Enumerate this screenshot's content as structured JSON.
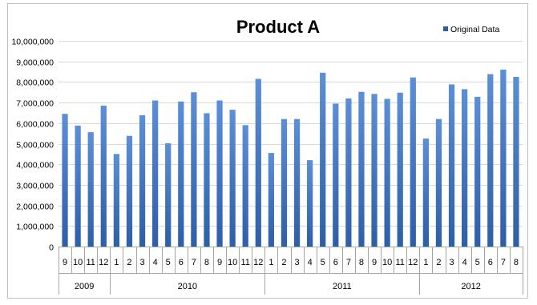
{
  "chart_data": {
    "type": "bar",
    "title": "Product A",
    "legend": {
      "position": "top-right",
      "series_name": "Original Data"
    },
    "colors": {
      "bar_top": "#5b8fd8",
      "bar_bottom": "#2d5ea8",
      "grid": "#d9d9d9",
      "axis": "#a6a6a6"
    },
    "grid": true,
    "ylim": [
      0,
      10000000
    ],
    "yticks": [
      0,
      1000000,
      2000000,
      3000000,
      4000000,
      5000000,
      6000000,
      7000000,
      8000000,
      9000000,
      10000000
    ],
    "ytick_labels": [
      "0",
      "1,000,000",
      "2,000,000",
      "3,000,000",
      "4,000,000",
      "5,000,000",
      "6,000,000",
      "7,000,000",
      "8,000,000",
      "9,000,000",
      "10,000,000"
    ],
    "categories": [
      "9",
      "10",
      "11",
      "12",
      "1",
      "2",
      "3",
      "4",
      "5",
      "6",
      "7",
      "8",
      "9",
      "10",
      "11",
      "12",
      "1",
      "2",
      "3",
      "4",
      "5",
      "6",
      "7",
      "8",
      "9",
      "10",
      "11",
      "12",
      "1",
      "2",
      "3",
      "4",
      "5",
      "6",
      "7",
      "8"
    ],
    "years": [
      {
        "label": "2009",
        "count": 4
      },
      {
        "label": "2010",
        "count": 12
      },
      {
        "label": "2011",
        "count": 12
      },
      {
        "label": "2012",
        "count": 8
      }
    ],
    "series": [
      {
        "name": "Original Data",
        "values": [
          6450000,
          5880000,
          5560000,
          6850000,
          4500000,
          5380000,
          6380000,
          7100000,
          5020000,
          7050000,
          7500000,
          6480000,
          7100000,
          6650000,
          5900000,
          8150000,
          4550000,
          6200000,
          6200000,
          4200000,
          8450000,
          6950000,
          7200000,
          7520000,
          7420000,
          7180000,
          7480000,
          8220000,
          5250000,
          6200000,
          7880000,
          7650000,
          7280000,
          8380000,
          8600000,
          8250000
        ]
      }
    ]
  }
}
